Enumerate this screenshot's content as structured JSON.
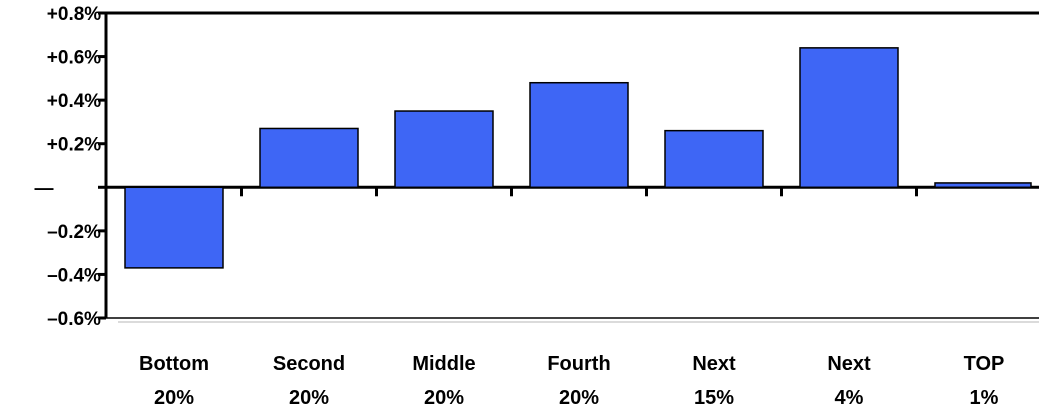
{
  "chart_data": {
    "type": "bar",
    "categories": [
      [
        "Bottom",
        "20%"
      ],
      [
        "Second",
        "20%"
      ],
      [
        "Middle",
        "20%"
      ],
      [
        "Fourth",
        "20%"
      ],
      [
        "Next",
        "15%"
      ],
      [
        "Next",
        "4%"
      ],
      [
        "TOP",
        "1%"
      ]
    ],
    "values": [
      -0.37,
      0.27,
      0.35,
      0.48,
      0.26,
      0.64,
      0.02
    ],
    "ylim": [
      -0.6,
      0.8
    ],
    "yticks": [
      0.8,
      0.6,
      0.4,
      0.2,
      0,
      -0.2,
      -0.4,
      -0.6
    ],
    "ytick_labels": [
      "+0.8%",
      "+0.6%",
      "+0.4%",
      "+0.2%",
      "—",
      "–0.2%",
      "–0.4%",
      "–0.6%"
    ],
    "bar_color": "#3e66f5",
    "grid": false
  }
}
